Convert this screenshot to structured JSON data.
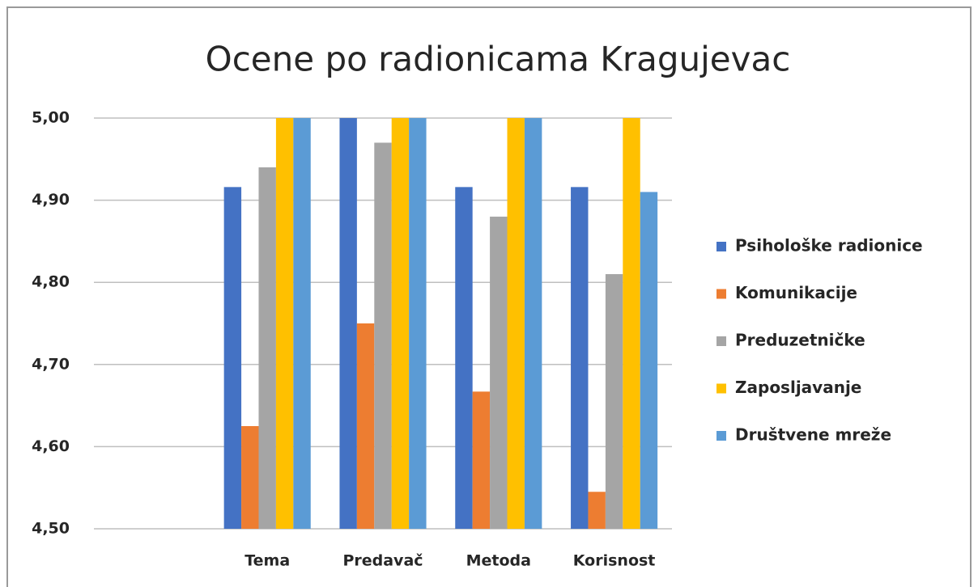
{
  "chart_data": {
    "type": "bar",
    "title": "Ocene po radionicama Kragujevac",
    "categories": [
      null,
      "Tema",
      "Predavač",
      "Metoda",
      "Korisnost"
    ],
    "series": [
      {
        "name": "Psihološke radionice",
        "color": "#4472c4",
        "values": [
          null,
          4.916,
          5.0,
          4.916,
          4.916
        ]
      },
      {
        "name": "Komunikacije",
        "color": "#ed7d31",
        "values": [
          null,
          4.625,
          4.75,
          4.667,
          4.545
        ]
      },
      {
        "name": "Preduzetničke",
        "color": "#a5a5a5",
        "values": [
          null,
          4.94,
          4.97,
          4.88,
          4.81
        ]
      },
      {
        "name": "Zaposljavanje",
        "color": "#ffc000",
        "values": [
          null,
          5.0,
          5.0,
          5.0,
          5.0
        ]
      },
      {
        "name": "Društvene mreže",
        "color": "#5b9bd5",
        "values": [
          null,
          5.0,
          5.0,
          5.0,
          4.91
        ]
      }
    ],
    "ylim": [
      4.5,
      5.0
    ],
    "yticks": [
      {
        "value": 4.5,
        "label": "4,50"
      },
      {
        "value": 4.6,
        "label": "4,60"
      },
      {
        "value": 4.7,
        "label": "4,70"
      },
      {
        "value": 4.8,
        "label": "4,80"
      },
      {
        "value": 4.9,
        "label": "4,90"
      },
      {
        "value": 5.0,
        "label": "5,00"
      }
    ],
    "grid": true,
    "legend": "right"
  }
}
